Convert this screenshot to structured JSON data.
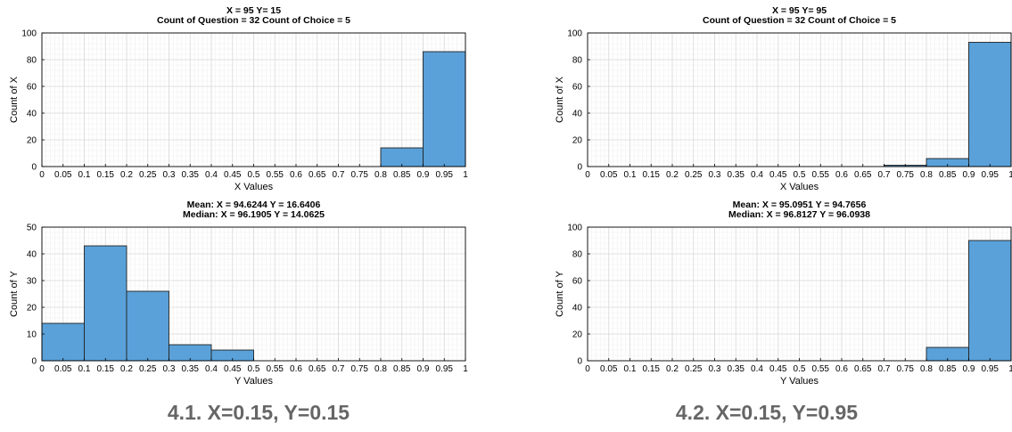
{
  "captions": [
    "4.1.  X=0.15, Y=0.15",
    "4.2.  X=0.15, Y=0.95"
  ],
  "colors": {
    "bar": "#5aa1d9",
    "bar_edge": "#222222",
    "grid_major": "#d9d9d9",
    "grid_minor": "#efefef",
    "axis": "#000000"
  },
  "chart_data": [
    {
      "type": "bar",
      "title": [
        "X = 95  Y= 15",
        "Count of Question = 32  Count of Choice = 5"
      ],
      "xlabel": "X Values",
      "ylabel": "Count of X",
      "xlim": [
        0,
        1
      ],
      "ylim": [
        0,
        100
      ],
      "xticks": [
        "0",
        "0.05",
        "0.1",
        "0.15",
        "0.2",
        "0.25",
        "0.3",
        "0.35",
        "0.4",
        "0.45",
        "0.5",
        "0.55",
        "0.6",
        "0.65",
        "0.7",
        "0.75",
        "0.8",
        "0.85",
        "0.9",
        "0.95",
        "1"
      ],
      "yticks": [
        "0",
        "20",
        "40",
        "60",
        "80",
        "100"
      ],
      "grid": true,
      "bins": [
        {
          "x0": 0.8,
          "x1": 0.9,
          "value": 14
        },
        {
          "x0": 0.9,
          "x1": 1.0,
          "value": 86
        }
      ]
    },
    {
      "type": "bar",
      "title": [
        "Mean: X = 94.6244  Y = 16.6406",
        "Median: X = 96.1905 Y = 14.0625"
      ],
      "xlabel": "Y Values",
      "ylabel": "Count of Y",
      "xlim": [
        0,
        1
      ],
      "ylim": [
        0,
        50
      ],
      "xticks": [
        "0",
        "0.05",
        "0.1",
        "0.15",
        "0.2",
        "0.25",
        "0.3",
        "0.35",
        "0.4",
        "0.45",
        "0.5",
        "0.55",
        "0.6",
        "0.65",
        "0.7",
        "0.75",
        "0.8",
        "0.85",
        "0.9",
        "0.95",
        "1"
      ],
      "yticks": [
        "0",
        "10",
        "20",
        "30",
        "40",
        "50"
      ],
      "grid": true,
      "bins": [
        {
          "x0": 0.0,
          "x1": 0.1,
          "value": 14
        },
        {
          "x0": 0.1,
          "x1": 0.2,
          "value": 43
        },
        {
          "x0": 0.2,
          "x1": 0.3,
          "value": 26
        },
        {
          "x0": 0.3,
          "x1": 0.4,
          "value": 6
        },
        {
          "x0": 0.4,
          "x1": 0.5,
          "value": 4
        }
      ]
    },
    {
      "type": "bar",
      "title": [
        "X = 95  Y= 95",
        "Count of Question = 32  Count of Choice = 5"
      ],
      "xlabel": "X Values",
      "ylabel": "Count of X",
      "xlim": [
        0,
        1
      ],
      "ylim": [
        0,
        100
      ],
      "xticks": [
        "0",
        "0.05",
        "0.1",
        "0.15",
        "0.2",
        "0.25",
        "0.3",
        "0.35",
        "0.4",
        "0.45",
        "0.5",
        "0.55",
        "0.6",
        "0.65",
        "0.7",
        "0.75",
        "0.8",
        "0.85",
        "0.9",
        "0.95",
        "1"
      ],
      "yticks": [
        "0",
        "20",
        "40",
        "60",
        "80",
        "100"
      ],
      "grid": true,
      "bins": [
        {
          "x0": 0.7,
          "x1": 0.8,
          "value": 1
        },
        {
          "x0": 0.8,
          "x1": 0.9,
          "value": 6
        },
        {
          "x0": 0.9,
          "x1": 1.0,
          "value": 93
        }
      ]
    },
    {
      "type": "bar",
      "title": [
        "Mean: X = 95.0951  Y = 94.7656",
        "Median: X = 96.8127 Y = 96.0938"
      ],
      "xlabel": "Y Values",
      "ylabel": "Count of Y",
      "xlim": [
        0,
        1
      ],
      "ylim": [
        0,
        100
      ],
      "xticks": [
        "0",
        "0.05",
        "0.1",
        "0.15",
        "0.2",
        "0.25",
        "0.3",
        "0.35",
        "0.4",
        "0.45",
        "0.5",
        "0.55",
        "0.6",
        "0.65",
        "0.7",
        "0.75",
        "0.8",
        "0.85",
        "0.9",
        "0.95",
        "1"
      ],
      "yticks": [
        "0",
        "20",
        "40",
        "60",
        "80",
        "100"
      ],
      "grid": true,
      "bins": [
        {
          "x0": 0.8,
          "x1": 0.9,
          "value": 10
        },
        {
          "x0": 0.9,
          "x1": 1.0,
          "value": 90
        }
      ]
    }
  ]
}
